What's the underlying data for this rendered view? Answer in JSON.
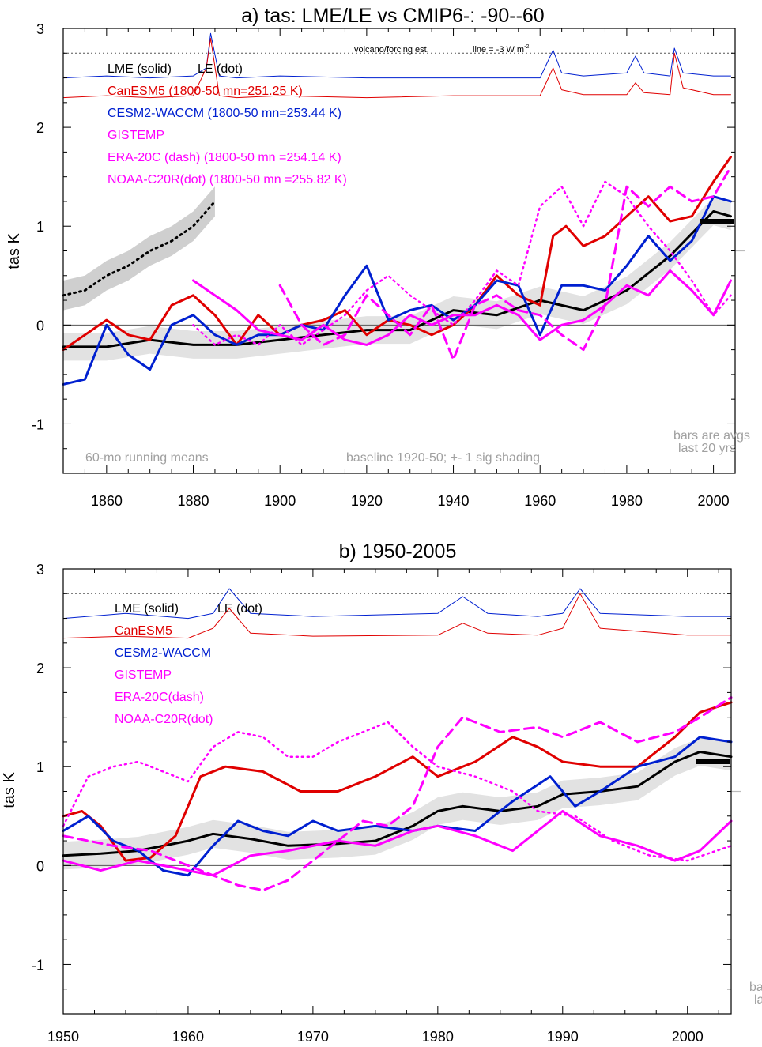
{
  "colors": {
    "lme": "#000000",
    "canesm5": "#e00000",
    "cesm2": "#0020d0",
    "obs": "#ff00ff",
    "shade": "#cfcfcf",
    "note": "#a0a0a0"
  },
  "chart_data": [
    {
      "type": "line",
      "title": "a) tas: LME/LE vs CMIP6-: -90--60",
      "xlabel": "",
      "ylabel": "tas K",
      "xlim": [
        1850,
        2005
      ],
      "ylim": [
        -1.5,
        3.0
      ],
      "xticks": [
        "1860",
        "1880",
        "1900",
        "1920",
        "1940",
        "1960",
        "1980",
        "2000"
      ],
      "yticks": [
        "-1",
        "0",
        "1",
        "2",
        "3"
      ],
      "legend": {
        "header_solid": "LME (solid)",
        "header_dot": "LE (dot)",
        "canesm5": "CanESM5 (1800-50 mn=251.25 K)",
        "cesm2": "CESM2-WACCM (1800-50 mn=253.44 K)",
        "gistemp": "GISTEMP",
        "era20c": "ERA-20C (dash) (1800-50 mn =254.14 K)",
        "noaa": "NOAA-C20R(dot) (1800-50 mn =255.82 K)"
      },
      "annotations": {
        "forcing": "volcano/forcing est.",
        "forcing_line": "line = -3 W m",
        "forcing_sup": "-2",
        "running": "60-mo running means",
        "baseline": "baseline 1920-50; +- 1 sig shading",
        "bars1": "bars are avgs",
        "bars2": "last 20 yrs"
      },
      "reference_line": 2.75,
      "series": [
        {
          "name": "LME ensemble mean",
          "x": [
            1850,
            1860,
            1870,
            1880,
            1890,
            1900,
            1910,
            1920,
            1930,
            1940,
            1950,
            1960,
            1970,
            1980,
            1990,
            2000,
            2004
          ],
          "values": [
            -0.22,
            -0.22,
            -0.15,
            -0.2,
            -0.2,
            -0.15,
            -0.1,
            -0.05,
            -0.05,
            0.15,
            0.1,
            0.25,
            0.15,
            0.35,
            0.7,
            1.15,
            1.1
          ]
        },
        {
          "name": "LE (dot)",
          "x": [
            1850,
            1855,
            1860,
            1865,
            1870,
            1875,
            1880,
            1885
          ],
          "values": [
            0.3,
            0.35,
            0.5,
            0.6,
            0.75,
            0.85,
            1.0,
            1.25
          ]
        },
        {
          "name": "CanESM5",
          "x": [
            1850,
            1855,
            1860,
            1865,
            1870,
            1875,
            1880,
            1885,
            1890,
            1895,
            1900,
            1905,
            1910,
            1915,
            1920,
            1925,
            1930,
            1935,
            1940,
            1945,
            1950,
            1955,
            1960,
            1963,
            1966,
            1970,
            1975,
            1980,
            1985,
            1990,
            1995,
            2000,
            2004
          ],
          "values": [
            -0.25,
            -0.1,
            0.05,
            -0.1,
            -0.15,
            0.2,
            0.3,
            0.1,
            -0.2,
            0.1,
            -0.1,
            0.0,
            0.05,
            0.15,
            -0.1,
            0.05,
            0.0,
            -0.1,
            0.0,
            0.2,
            0.5,
            0.3,
            0.2,
            0.9,
            1.0,
            0.8,
            0.9,
            1.1,
            1.3,
            1.05,
            1.1,
            1.45,
            1.7
          ]
        },
        {
          "name": "CESM2-WACCM",
          "x": [
            1850,
            1855,
            1860,
            1865,
            1870,
            1875,
            1880,
            1885,
            1890,
            1895,
            1900,
            1905,
            1910,
            1915,
            1920,
            1925,
            1930,
            1935,
            1940,
            1945,
            1950,
            1955,
            1960,
            1965,
            1970,
            1975,
            1980,
            1985,
            1990,
            1995,
            2000,
            2004
          ],
          "values": [
            -0.6,
            -0.55,
            0.0,
            -0.3,
            -0.45,
            0.0,
            0.1,
            -0.1,
            -0.2,
            -0.1,
            -0.1,
            0.0,
            -0.05,
            0.3,
            0.6,
            0.05,
            0.15,
            0.2,
            0.05,
            0.2,
            0.45,
            0.4,
            -0.1,
            0.4,
            0.4,
            0.35,
            0.6,
            0.9,
            0.65,
            0.85,
            1.3,
            1.25
          ]
        },
        {
          "name": "GISTEMP",
          "x": [
            1880,
            1885,
            1890,
            1895,
            1900,
            1905,
            1910,
            1915,
            1920,
            1925,
            1930,
            1935,
            1940,
            1945,
            1950,
            1955,
            1960,
            1965,
            1970,
            1975,
            1980,
            1985,
            1990,
            1995,
            2000,
            2004
          ],
          "values": [
            0.45,
            0.3,
            0.15,
            -0.05,
            -0.1,
            -0.15,
            0.0,
            -0.15,
            -0.2,
            -0.1,
            0.1,
            0.0,
            0.1,
            0.1,
            0.2,
            0.1,
            -0.15,
            0.0,
            0.05,
            0.2,
            0.4,
            0.3,
            0.55,
            0.35,
            0.1,
            0.45
          ]
        },
        {
          "name": "ERA-20C (dash)",
          "x": [
            1900,
            1905,
            1910,
            1915,
            1920,
            1925,
            1930,
            1935,
            1940,
            1945,
            1950,
            1955,
            1960,
            1965,
            1970,
            1975,
            1980,
            1985,
            1990,
            1995,
            2000,
            2004
          ],
          "values": [
            0.4,
            0.0,
            -0.2,
            -0.1,
            0.3,
            0.1,
            -0.1,
            0.2,
            -0.35,
            0.2,
            0.3,
            0.15,
            0.1,
            -0.1,
            -0.25,
            0.2,
            1.4,
            1.2,
            1.4,
            1.25,
            1.3,
            1.6
          ]
        },
        {
          "name": "NOAA-C20R (dot)",
          "x": [
            1880,
            1885,
            1890,
            1895,
            1900,
            1905,
            1910,
            1915,
            1920,
            1925,
            1930,
            1935,
            1940,
            1945,
            1950,
            1955,
            1960,
            1965,
            1970,
            1975,
            1980,
            1985,
            1990,
            1995,
            2000,
            2004
          ],
          "values": [
            0.0,
            -0.2,
            -0.1,
            -0.2,
            0.0,
            -0.2,
            -0.05,
            0.1,
            0.35,
            0.5,
            0.3,
            0.15,
            0.0,
            0.25,
            0.55,
            0.4,
            1.2,
            1.4,
            1.0,
            1.45,
            1.3,
            1.0,
            0.75,
            0.45,
            0.1,
            0.3
          ]
        },
        {
          "name": "LME volcanic forcing (blue)",
          "x": [
            1850,
            1860,
            1870,
            1880,
            1883,
            1884,
            1886,
            1890,
            1900,
            1920,
            1940,
            1960,
            1963,
            1965,
            1970,
            1980,
            1982,
            1984,
            1990,
            1991,
            1993,
            2000,
            2004
          ],
          "values": [
            2.5,
            2.52,
            2.5,
            2.52,
            2.6,
            2.95,
            2.52,
            2.5,
            2.52,
            2.5,
            2.5,
            2.5,
            2.78,
            2.55,
            2.52,
            2.55,
            2.72,
            2.55,
            2.52,
            2.8,
            2.55,
            2.52,
            2.52
          ]
        },
        {
          "name": "CanESM5 forcing (red)",
          "x": [
            1850,
            1860,
            1870,
            1880,
            1883,
            1884,
            1886,
            1890,
            1900,
            1920,
            1940,
            1960,
            1963,
            1965,
            1970,
            1980,
            1982,
            1984,
            1990,
            1991,
            1993,
            2000,
            2004
          ],
          "values": [
            2.3,
            2.32,
            2.3,
            2.32,
            2.6,
            2.9,
            2.32,
            2.3,
            2.32,
            2.3,
            2.32,
            2.32,
            2.6,
            2.38,
            2.33,
            2.33,
            2.45,
            2.35,
            2.33,
            2.75,
            2.4,
            2.33,
            2.33
          ]
        }
      ],
      "bars_last20yrs": [
        1.05
      ]
    },
    {
      "type": "line",
      "title": "b) 1950-2005",
      "xlabel": "",
      "ylabel": "tas K",
      "xlim": [
        1950,
        2003.5
      ],
      "ylim": [
        -1.5,
        3.0
      ],
      "xticks": [
        "1950",
        "1960",
        "1970",
        "1980",
        "1990",
        "2000"
      ],
      "yticks": [
        "-1",
        "0",
        "1",
        "2",
        "3"
      ],
      "legend": {
        "header_solid": "LME (solid)",
        "header_dot": "LE (dot)",
        "canesm5": "CanESM5",
        "cesm2": "CESM2-WACCM",
        "gistemp": "GISTEMP",
        "era20c": "ERA-20C(dash)",
        "noaa": "NOAA-C20R(dot)"
      },
      "annotations": {
        "bars1": "ba",
        "bars2": "la"
      },
      "reference_line": 2.75,
      "series": [
        {
          "name": "LME ensemble mean",
          "x": [
            1950,
            1953,
            1956,
            1960,
            1962,
            1965,
            1968,
            1972,
            1975,
            1978,
            1980,
            1982,
            1985,
            1988,
            1990,
            1993,
            1996,
            1999,
            2001,
            2003.5
          ],
          "values": [
            0.1,
            0.12,
            0.15,
            0.25,
            0.32,
            0.27,
            0.2,
            0.22,
            0.25,
            0.4,
            0.55,
            0.6,
            0.55,
            0.6,
            0.72,
            0.75,
            0.8,
            1.05,
            1.15,
            1.1
          ]
        },
        {
          "name": "CanESM5",
          "x": [
            1950,
            1951.5,
            1953,
            1955,
            1957,
            1959,
            1961,
            1963,
            1966,
            1969,
            1972,
            1975,
            1978,
            1980,
            1983,
            1986,
            1988,
            1990,
            1993,
            1996,
            1999,
            2001,
            2003.5
          ],
          "values": [
            0.5,
            0.55,
            0.4,
            0.05,
            0.08,
            0.3,
            0.9,
            1.0,
            0.95,
            0.75,
            0.75,
            0.9,
            1.1,
            0.9,
            1.05,
            1.3,
            1.2,
            1.05,
            1.0,
            1.0,
            1.3,
            1.55,
            1.65
          ]
        },
        {
          "name": "CESM2-WACCM",
          "x": [
            1950,
            1952,
            1954,
            1956,
            1958,
            1960,
            1962,
            1964,
            1966,
            1968,
            1970,
            1972,
            1975,
            1978,
            1980,
            1983,
            1986,
            1989,
            1991,
            1993,
            1996,
            1999,
            2001,
            2003.5
          ],
          "values": [
            0.35,
            0.5,
            0.25,
            0.15,
            -0.05,
            -0.1,
            0.2,
            0.45,
            0.35,
            0.3,
            0.45,
            0.35,
            0.4,
            0.35,
            0.4,
            0.35,
            0.65,
            0.9,
            0.6,
            0.75,
            1.0,
            1.1,
            1.3,
            1.25
          ]
        },
        {
          "name": "GISTEMP",
          "x": [
            1950,
            1953,
            1956,
            1960,
            1962,
            1965,
            1968,
            1972,
            1975,
            1978,
            1980,
            1983,
            1986,
            1990,
            1993,
            1996,
            1999,
            2001,
            2003.5
          ],
          "values": [
            0.05,
            -0.05,
            0.05,
            -0.05,
            -0.1,
            0.1,
            0.15,
            0.25,
            0.2,
            0.35,
            0.4,
            0.3,
            0.15,
            0.55,
            0.3,
            0.2,
            0.05,
            0.15,
            0.45
          ]
        },
        {
          "name": "ERA-20C (dash)",
          "x": [
            1950,
            1954,
            1957,
            1960,
            1962,
            1964,
            1966,
            1968,
            1970,
            1972,
            1974,
            1976,
            1978,
            1980,
            1982,
            1985,
            1988,
            1990,
            1993,
            1996,
            1999,
            2001,
            2003.5
          ],
          "values": [
            0.3,
            0.2,
            0.15,
            0.0,
            -0.1,
            -0.2,
            -0.25,
            -0.15,
            0.05,
            0.25,
            0.45,
            0.4,
            0.6,
            1.2,
            1.5,
            1.35,
            1.4,
            1.3,
            1.45,
            1.25,
            1.35,
            1.5,
            1.7
          ]
        },
        {
          "name": "NOAA-C20R (dot)",
          "x": [
            1950,
            1952,
            1954,
            1956,
            1958,
            1960,
            1962,
            1964,
            1966,
            1968,
            1970,
            1972,
            1974,
            1976,
            1978,
            1980,
            1983,
            1986,
            1988,
            1991,
            1994,
            1997,
            2000,
            2003.5
          ],
          "values": [
            0.4,
            0.9,
            1.0,
            1.05,
            0.95,
            0.85,
            1.2,
            1.35,
            1.3,
            1.1,
            1.1,
            1.25,
            1.35,
            1.45,
            1.2,
            1.0,
            0.9,
            0.75,
            0.55,
            0.5,
            0.25,
            0.1,
            0.05,
            0.2
          ]
        },
        {
          "name": "LME volcanic forcing (blue)",
          "x": [
            1950,
            1955,
            1960,
            1962,
            1963.3,
            1965,
            1970,
            1980,
            1982,
            1984,
            1988,
            1990,
            1991.4,
            1993,
            2000,
            2003.5
          ],
          "values": [
            2.5,
            2.55,
            2.5,
            2.55,
            2.8,
            2.55,
            2.52,
            2.55,
            2.72,
            2.55,
            2.52,
            2.55,
            2.8,
            2.55,
            2.52,
            2.52
          ]
        },
        {
          "name": "CanESM5 forcing (red)",
          "x": [
            1950,
            1955,
            1960,
            1962,
            1963.3,
            1965,
            1970,
            1980,
            1982,
            1984,
            1988,
            1990,
            1991.4,
            1993,
            2000,
            2003.5
          ],
          "values": [
            2.3,
            2.32,
            2.3,
            2.4,
            2.6,
            2.35,
            2.32,
            2.33,
            2.45,
            2.35,
            2.33,
            2.4,
            2.75,
            2.4,
            2.33,
            2.33
          ]
        }
      ],
      "bars_last20yrs": [
        1.05
      ]
    }
  ]
}
